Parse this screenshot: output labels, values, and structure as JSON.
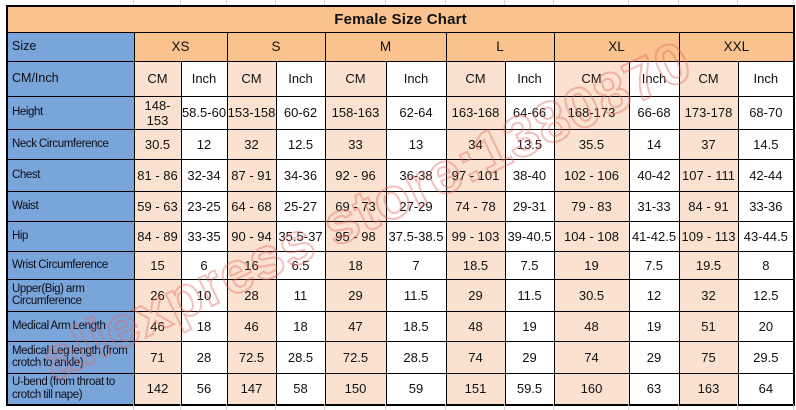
{
  "title": "Female Size Chart",
  "watermark_text": "aliexpress store:1380870",
  "header": {
    "size_label": "Size",
    "unit_label": "CM/Inch",
    "sizes": [
      "XS",
      "S",
      "M",
      "L",
      "XL",
      "XXL"
    ],
    "units": [
      "CM",
      "Inch"
    ]
  },
  "rows": [
    {
      "label": "Height",
      "values": [
        "148-153",
        "58.5-60",
        "153-158",
        "60-62",
        "158-163",
        "62-64",
        "163-168",
        "64-66",
        "168-173",
        "66-68",
        "173-178",
        "68-70"
      ]
    },
    {
      "label": "Neck Circumference",
      "values": [
        "30.5",
        "12",
        "32",
        "12.5",
        "33",
        "13",
        "34",
        "13.5",
        "35.5",
        "14",
        "37",
        "14.5"
      ]
    },
    {
      "label": "Chest",
      "values": [
        "81 - 86",
        "32-34",
        "87 - 91",
        "34-36",
        "92 - 96",
        "36-38",
        "97 - 101",
        "38-40",
        "102 - 106",
        "40-42",
        "107 - 111",
        "42-44"
      ]
    },
    {
      "label": "Waist",
      "values": [
        "59 - 63",
        "23-25",
        "64 - 68",
        "25-27",
        "69 - 73",
        "27-29",
        "74 - 78",
        "29-31",
        "79 - 83",
        "31-33",
        "84 - 91",
        "33-36"
      ]
    },
    {
      "label": "Hip",
      "values": [
        "84 - 89",
        "33-35",
        "90 - 94",
        "35.5-37",
        "95 - 98",
        "37.5-38.5",
        "99 - 103",
        "39-40.5",
        "104 - 108",
        "41-42.5",
        "109 - 113",
        "43-44.5"
      ]
    },
    {
      "label": "Wrist Circumference",
      "values": [
        "15",
        "6",
        "16",
        "6.5",
        "18",
        "7",
        "18.5",
        "7.5",
        "19",
        "7.5",
        "19.5",
        "8"
      ]
    },
    {
      "label": "Upper(Big) arm Circumference",
      "values": [
        "26",
        "10",
        "28",
        "11",
        "29",
        "11.5",
        "29",
        "11.5",
        "30.5",
        "12",
        "32",
        "12.5"
      ]
    },
    {
      "label": "Medical Arm Length",
      "values": [
        "46",
        "18",
        "46",
        "18",
        "47",
        "18.5",
        "48",
        "19",
        "48",
        "19",
        "51",
        "20"
      ]
    },
    {
      "label": "Medical Leg length (from crotch to ankle)",
      "values": [
        "71",
        "28",
        "72.5",
        "28.5",
        "72.5",
        "28.5",
        "74",
        "29",
        "74",
        "29",
        "75",
        "29.5"
      ]
    },
    {
      "label": "U-bend (from throat to crotch till nape)",
      "values": [
        "142",
        "56",
        "147",
        "58",
        "150",
        "59",
        "151",
        "59.5",
        "160",
        "63",
        "163",
        "64"
      ]
    }
  ],
  "colors": {
    "header_orange": "#f9c28e",
    "cm_peach": "#fbe2d0",
    "label_blue": "#7aa5da",
    "border": "#000000",
    "watermark_pink": "#e06a60"
  }
}
